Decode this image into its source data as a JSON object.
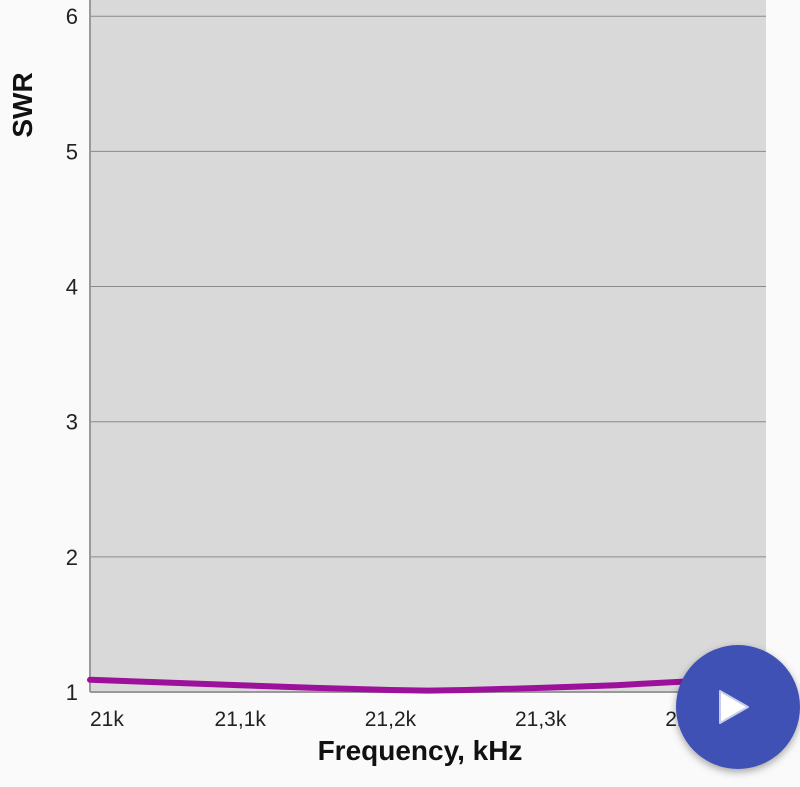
{
  "chart_data": {
    "type": "line",
    "title": "",
    "xlabel": "Frequency, kHz",
    "ylabel": "SWR",
    "xlim": [
      21000,
      21450
    ],
    "ylim": [
      1,
      6.12
    ],
    "x_ticks": [
      21000,
      21100,
      21200,
      21300,
      21400
    ],
    "x_tick_labels": [
      "21k",
      "21,1k",
      "21,2k",
      "21,3k",
      "21,4k"
    ],
    "y_ticks": [
      1,
      2,
      3,
      4,
      5,
      6
    ],
    "y_tick_labels": [
      "1",
      "2",
      "3",
      "4",
      "5",
      "6"
    ],
    "grid": true,
    "series": [
      {
        "color": "#9c109c",
        "x": [
          21000,
          21050,
          21100,
          21150,
          21200,
          21225,
          21250,
          21300,
          21350,
          21400,
          21450
        ],
        "y": [
          1.09,
          1.07,
          1.05,
          1.03,
          1.015,
          1.01,
          1.015,
          1.03,
          1.05,
          1.08,
          1.1
        ]
      }
    ],
    "plot_background": "#d9d9d9"
  },
  "fab": {
    "icon": "play-icon",
    "color": "#3f51b5"
  }
}
